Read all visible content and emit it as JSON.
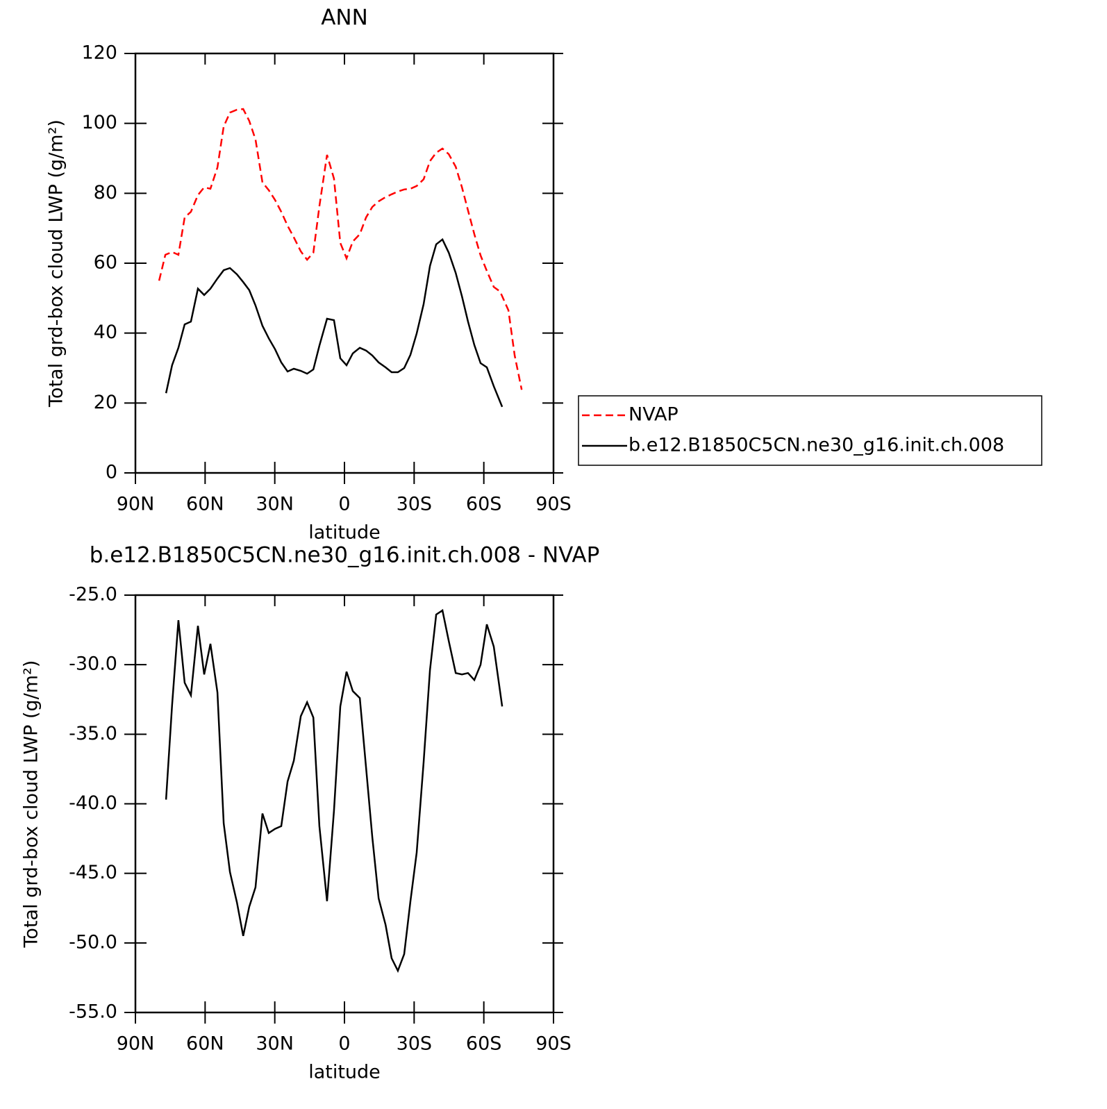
{
  "chart_data": [
    {
      "type": "line",
      "title": "ANN",
      "xlabel": "latitude",
      "ylabel": "Total grd-box cloud LWP (g/m²)",
      "xlim": [
        90,
        -90
      ],
      "xticks": [
        {
          "value": 90,
          "label": "90N"
        },
        {
          "value": 60,
          "label": "60N"
        },
        {
          "value": 30,
          "label": "30N"
        },
        0,
        {
          "value": -30,
          "label": "30S"
        },
        {
          "value": -60,
          "label": "60S"
        },
        {
          "value": -90,
          "label": "90S"
        }
      ],
      "ylim": [
        0,
        120
      ],
      "yticks": [
        0,
        20,
        40,
        60,
        80,
        100,
        120
      ],
      "legend": "right",
      "series": [
        {
          "name": "NVAP",
          "color": "#ff0000",
          "dash": true,
          "x": [
            79.8,
            77.1,
            74.2,
            71.5,
            68.8,
            66.1,
            63.1,
            60.4,
            57.7,
            54.7,
            52.0,
            49.3,
            46.3,
            43.6,
            41.0,
            38.3,
            35.3,
            32.6,
            29.9,
            27.2,
            24.5,
            21.8,
            18.8,
            16.1,
            13.4,
            10.8,
            7.5,
            4.5,
            1.8,
            -0.9,
            -3.6,
            -6.6,
            -9.3,
            -12.0,
            -14.7,
            -17.7,
            -20.3,
            -23.0,
            -25.7,
            -28.4,
            -31.1,
            -34.1,
            -36.8,
            -39.5,
            -42.2,
            -44.9,
            -47.9,
            -50.6,
            -53.2,
            -55.9,
            -58.6,
            -61.3,
            -64.3,
            -67.0,
            -70.6,
            -73.3,
            -76.3
          ],
          "values": [
            55.0,
            62.4,
            63.2,
            62.4,
            73.1,
            74.7,
            79.5,
            81.7,
            81.3,
            87.4,
            99.1,
            103.1,
            103.9,
            104.1,
            100.7,
            95.4,
            83.1,
            80.9,
            78.1,
            74.7,
            70.7,
            67.4,
            63.4,
            61.0,
            63.0,
            76.3,
            91.0,
            84.2,
            65.8,
            61.4,
            66.2,
            68.3,
            73.1,
            76.1,
            77.7,
            78.9,
            79.7,
            80.5,
            81.1,
            81.3,
            82.1,
            84.0,
            89.2,
            91.6,
            92.8,
            91.2,
            87.6,
            81.7,
            75.1,
            68.3,
            62.2,
            57.8,
            53.2,
            51.9,
            46.5,
            33.6,
            23.8
          ]
        },
        {
          "name": "b.e12.B1850C5CN.ne30_g16.init.ch.008",
          "color": "#000000",
          "dash": false,
          "x": [
            76.8,
            74.2,
            71.5,
            68.8,
            66.1,
            63.1,
            60.4,
            57.7,
            54.7,
            52.0,
            49.3,
            46.3,
            43.6,
            41.0,
            38.3,
            35.3,
            32.6,
            29.9,
            27.2,
            24.5,
            21.8,
            18.8,
            16.1,
            13.4,
            10.8,
            7.5,
            4.5,
            1.8,
            -0.9,
            -3.6,
            -6.6,
            -9.3,
            -12.0,
            -14.7,
            -17.7,
            -20.3,
            -23.0,
            -25.7,
            -28.4,
            -31.1,
            -34.1,
            -36.8,
            -39.5,
            -42.2,
            -44.9,
            -47.9,
            -50.6,
            -53.2,
            -55.9,
            -58.6,
            -61.3,
            -64.3,
            -67.9
          ],
          "values": [
            22.8,
            30.8,
            35.8,
            42.5,
            43.3,
            52.7,
            50.9,
            52.7,
            55.6,
            58.0,
            58.6,
            56.8,
            54.6,
            52.3,
            47.9,
            42.1,
            38.5,
            35.4,
            31.6,
            29.0,
            29.8,
            29.2,
            28.4,
            29.6,
            36.4,
            44.1,
            43.7,
            32.8,
            30.8,
            34.2,
            35.8,
            35.0,
            33.6,
            31.6,
            30.2,
            28.8,
            28.8,
            30.0,
            33.8,
            39.9,
            48.3,
            59.2,
            65.4,
            66.8,
            63.0,
            57.2,
            50.5,
            43.3,
            36.6,
            31.4,
            30.2,
            24.8,
            18.9
          ]
        }
      ]
    },
    {
      "type": "line",
      "title": "b.e12.B1850C5CN.ne30_g16.init.ch.008 - NVAP",
      "xlabel": "latitude",
      "ylabel": "Total grd-box cloud LWP (g/m²)",
      "xlim": [
        90,
        -90
      ],
      "xticks": [
        {
          "value": 90,
          "label": "90N"
        },
        {
          "value": 60,
          "label": "60N"
        },
        {
          "value": 30,
          "label": "30N"
        },
        0,
        {
          "value": -30,
          "label": "30S"
        },
        {
          "value": -60,
          "label": "60S"
        },
        {
          "value": -90,
          "label": "90S"
        }
      ],
      "ylim": [
        -55,
        -25
      ],
      "yticks": [
        {
          "value": -55,
          "label": "-55.0"
        },
        {
          "value": -50,
          "label": "-50.0"
        },
        {
          "value": -45,
          "label": "-45.0"
        },
        {
          "value": -40,
          "label": "-40.0"
        },
        {
          "value": -35,
          "label": "-35.0"
        },
        {
          "value": -30,
          "label": "-30.0"
        },
        {
          "value": -25,
          "label": "-25.0"
        }
      ],
      "color": "#000000",
      "x": [
        76.8,
        74.2,
        71.5,
        68.8,
        66.1,
        63.1,
        60.4,
        57.7,
        54.7,
        52.0,
        49.3,
        46.3,
        43.6,
        41.0,
        38.3,
        35.3,
        32.6,
        29.9,
        27.2,
        24.5,
        21.8,
        18.8,
        16.1,
        13.4,
        10.8,
        7.5,
        4.5,
        1.8,
        -0.9,
        -3.6,
        -6.6,
        -9.3,
        -12.0,
        -14.7,
        -17.7,
        -20.3,
        -23.0,
        -25.7,
        -28.4,
        -31.1,
        -34.1,
        -36.8,
        -39.5,
        -42.2,
        -44.9,
        -47.9,
        -50.6,
        -53.2,
        -55.9,
        -58.6,
        -61.3,
        -64.3,
        -67.9
      ],
      "values": [
        -39.7,
        -32.9,
        -26.8,
        -31.3,
        -32.2,
        -27.2,
        -30.7,
        -28.5,
        -32.0,
        -41.4,
        -44.9,
        -47.1,
        -49.5,
        -47.4,
        -46.0,
        -40.7,
        -42.1,
        -41.8,
        -41.6,
        -38.4,
        -36.9,
        -33.7,
        -32.7,
        -33.8,
        -41.6,
        -47.0,
        -40.5,
        -33.0,
        -30.5,
        -31.9,
        -32.4,
        -37.4,
        -42.4,
        -46.8,
        -48.7,
        -51.1,
        -52.0,
        -50.8,
        -47.0,
        -43.5,
        -37.0,
        -30.4,
        -26.4,
        -26.1,
        -28.3,
        -30.6,
        -30.7,
        -30.6,
        -31.1,
        -30.0,
        -27.1,
        -28.7,
        -33.0
      ]
    }
  ]
}
